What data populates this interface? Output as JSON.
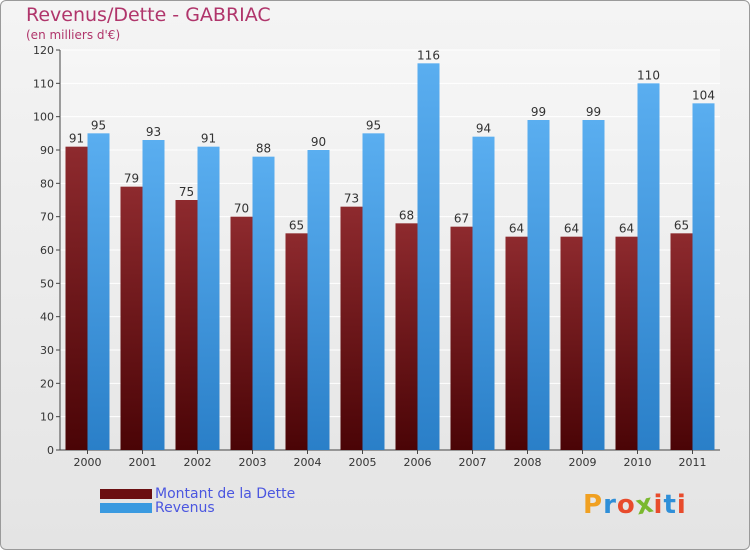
{
  "title": "Revenus/Dette - GABRIAC",
  "subtitle": "(en milliers d'€)",
  "brand": {
    "letters": [
      "P",
      "r",
      "o",
      "x",
      "i",
      "t",
      "i"
    ],
    "colors": [
      "#f0a021",
      "#2f8fd8",
      "#e84b2c",
      "#7ab82e",
      "#e84b2c",
      "#2f8fd8",
      "#e84b2c"
    ]
  },
  "colors": {
    "dette": "#7a1418",
    "revenus": "#3a9ae0"
  },
  "legend": [
    {
      "label": "Montant de la Dette",
      "color": "#6b0f12"
    },
    {
      "label": "Revenus",
      "color": "#3a9ae0"
    }
  ],
  "chart_data": {
    "type": "bar",
    "title": "Revenus/Dette - GABRIAC",
    "ylabel": "(en milliers d'€)",
    "categories": [
      "2000",
      "2001",
      "2002",
      "2003",
      "2004",
      "2005",
      "2006",
      "2007",
      "2008",
      "2009",
      "2010",
      "2011"
    ],
    "series": [
      {
        "name": "Montant de la Dette",
        "values": [
          91,
          79,
          75,
          70,
          65,
          73,
          68,
          67,
          64,
          64,
          64,
          65
        ]
      },
      {
        "name": "Revenus",
        "values": [
          95,
          93,
          91,
          88,
          90,
          95,
          116,
          94,
          99,
          99,
          110,
          104
        ]
      }
    ],
    "ylim": [
      0,
      120
    ],
    "yticks": [
      0,
      10,
      20,
      30,
      40,
      50,
      60,
      70,
      80,
      90,
      100,
      110,
      120
    ],
    "grid": true
  }
}
